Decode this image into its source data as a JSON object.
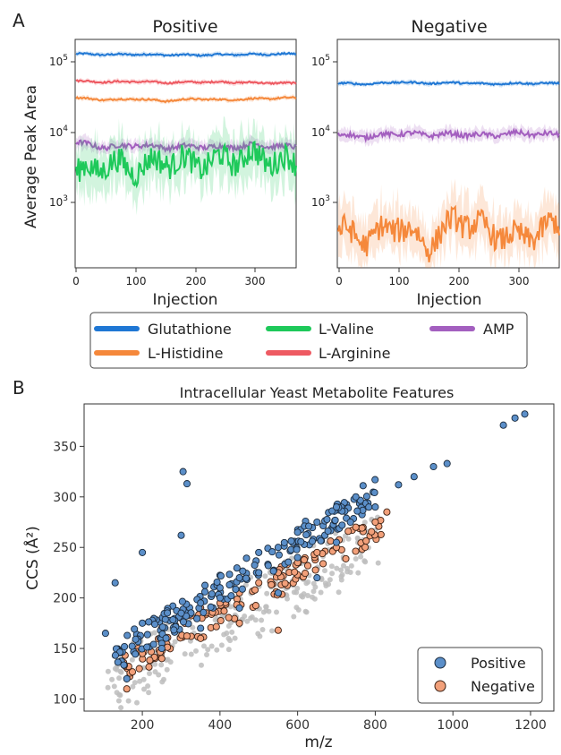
{
  "panel_a": {
    "letter": "A",
    "ylabel": "Average Peak Area",
    "xlabel": "Injection",
    "x_ticks": [
      "0",
      "100",
      "200",
      "300"
    ],
    "y_ticks": [
      {
        "base": "10",
        "exp": "5"
      },
      {
        "base": "10",
        "exp": "4"
      },
      {
        "base": "10",
        "exp": "3"
      }
    ],
    "legend": [
      {
        "name": "Glutathione",
        "color": "#1f77d4"
      },
      {
        "name": "L-Valine",
        "color": "#1ec95a"
      },
      {
        "name": "AMP",
        "color": "#a35fbf"
      },
      {
        "name": "L-Histidine",
        "color": "#f5883b"
      },
      {
        "name": "L-Arginine",
        "color": "#ee5a62"
      }
    ]
  },
  "panel_b": {
    "letter": "B",
    "title": "Intracellular Yeast Metabolite Features",
    "xlabel": "m/z",
    "ylabel": "CCS (Å²)",
    "x_ticks": [
      "200",
      "400",
      "600",
      "800",
      "1000",
      "1200"
    ],
    "y_ticks": [
      "100",
      "150",
      "200",
      "250",
      "300",
      "350"
    ],
    "legend": [
      {
        "name": "Positive",
        "color": "#5b8fc9"
      },
      {
        "name": "Negative",
        "color": "#f2a07a"
      }
    ]
  },
  "chart_data": [
    {
      "type": "line",
      "title": "Positive",
      "xlabel": "Injection",
      "ylabel": "Average Peak Area",
      "yscale": "log",
      "xlim": [
        0,
        370
      ],
      "ylim": [
        120,
        200000
      ],
      "series": [
        {
          "name": "Glutathione",
          "color": "#1f77d4",
          "x": [
            0,
            50,
            100,
            150,
            200,
            250,
            300,
            370
          ],
          "values": [
            125000,
            122000,
            123000,
            121000,
            120000,
            122000,
            123000,
            125000
          ]
        },
        {
          "name": "L-Arginine",
          "color": "#ee5a62",
          "x": [
            0,
            50,
            100,
            150,
            200,
            250,
            300,
            370
          ],
          "values": [
            52000,
            50000,
            51000,
            49000,
            50000,
            50000,
            49000,
            48000
          ]
        },
        {
          "name": "L-Histidine",
          "color": "#f5883b",
          "x": [
            0,
            50,
            100,
            150,
            200,
            250,
            300,
            370
          ],
          "values": [
            30000,
            28000,
            29000,
            27000,
            29000,
            28000,
            29000,
            30000
          ]
        },
        {
          "name": "AMP",
          "color": "#a35fbf",
          "x": [
            0,
            50,
            100,
            150,
            200,
            250,
            300,
            370
          ],
          "values": [
            7000,
            6000,
            6500,
            6000,
            6200,
            6000,
            6500,
            6000
          ]
        },
        {
          "name": "L-Valine",
          "color": "#1ec95a",
          "x": [
            0,
            50,
            100,
            150,
            200,
            250,
            300,
            370
          ],
          "values": [
            2500,
            3500,
            3000,
            4000,
            3500,
            4000,
            4500,
            3500
          ]
        }
      ]
    },
    {
      "type": "line",
      "title": "Negative",
      "xlabel": "Injection",
      "yscale": "log",
      "xlim": [
        0,
        370
      ],
      "ylim": [
        120,
        200000
      ],
      "series": [
        {
          "name": "Glutathione",
          "color": "#1f77d4",
          "x": [
            0,
            50,
            100,
            150,
            200,
            250,
            300,
            370
          ],
          "values": [
            48000,
            47000,
            50000,
            48000,
            49000,
            47000,
            48000,
            48000
          ]
        },
        {
          "name": "AMP",
          "color": "#a35fbf",
          "x": [
            0,
            50,
            100,
            150,
            200,
            250,
            300,
            370
          ],
          "values": [
            9000,
            8500,
            9500,
            9000,
            9200,
            8800,
            9500,
            9000
          ]
        },
        {
          "name": "L-Histidine",
          "color": "#f5883b",
          "x": [
            0,
            50,
            100,
            150,
            200,
            250,
            300,
            370
          ],
          "values": [
            400,
            300,
            500,
            250,
            600,
            400,
            300,
            500
          ]
        }
      ]
    },
    {
      "type": "scatter",
      "title": "Intracellular Yeast Metabolite Features",
      "xlabel": "m/z",
      "ylabel": "CCS (Å²)",
      "xlim": [
        50,
        1260
      ],
      "ylim": [
        88,
        392
      ],
      "series": [
        {
          "name": "Positive",
          "color": "#5b8fc9",
          "x": [
            105,
            130,
            160,
            200,
            250,
            300,
            305,
            315,
            350,
            400,
            450,
            500,
            550,
            600,
            650,
            700,
            750,
            800,
            860,
            900,
            950,
            985,
            1130,
            1160,
            1185,
            200,
            300,
            400,
            500,
            600,
            700,
            250,
            350,
            450,
            550,
            650
          ],
          "values": [
            165,
            215,
            120,
            245,
            155,
            262,
            325,
            313,
            195,
            210,
            220,
            245,
            250,
            265,
            275,
            290,
            300,
            290,
            312,
            320,
            330,
            333,
            371,
            378,
            382,
            175,
            185,
            200,
            225,
            240,
            255,
            150,
            170,
            190,
            205,
            220
          ]
        },
        {
          "name": "Negative",
          "color": "#f2a07a",
          "x": [
            160,
            200,
            250,
            300,
            350,
            400,
            450,
            500,
            550,
            600,
            650,
            700,
            750,
            800,
            830,
            250,
            350,
            450,
            550
          ],
          "values": [
            110,
            145,
            170,
            180,
            190,
            195,
            205,
            215,
            225,
            235,
            245,
            250,
            270,
            275,
            285,
            140,
            160,
            175,
            168
          ]
        }
      ]
    }
  ]
}
